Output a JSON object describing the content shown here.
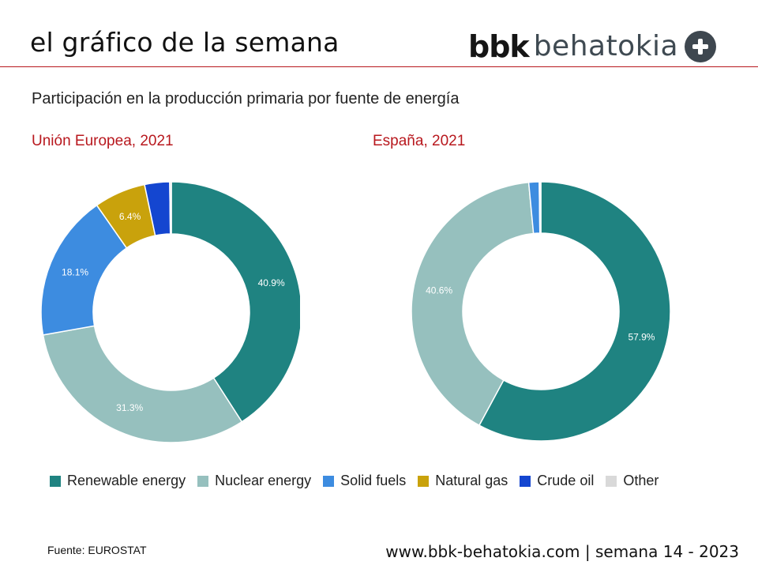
{
  "header": {
    "title": "el gráfico de la semana",
    "logo_text_bold": "bbk",
    "logo_text_light": "behatokia",
    "logo_icon": "plus-circle-icon"
  },
  "subtitle": "Participación en la producción primaria por fuente de energía",
  "colors": {
    "accent_red": "#b8181e",
    "renewable": "#1f8381",
    "nuclear": "#96c0be",
    "solid_fuels": "#3d8ce0",
    "natural_gas": "#c9a20c",
    "crude_oil": "#1446d0",
    "other": "#d9d9d9"
  },
  "chart_data": [
    {
      "type": "pie",
      "donut": true,
      "title": "Unión Europea, 2021",
      "categories": [
        "Renewable energy",
        "Nuclear energy",
        "Solid fuels",
        "Natural gas",
        "Crude oil",
        "Other"
      ],
      "values": [
        40.9,
        31.3,
        18.1,
        6.4,
        3.1,
        0.2
      ],
      "data_labels": [
        "40.9%",
        "31.3%",
        "18.1%",
        "6.4%",
        "",
        ""
      ]
    },
    {
      "type": "pie",
      "donut": true,
      "title": "España, 2021",
      "categories": [
        "Renewable energy",
        "Nuclear energy",
        "Solid fuels",
        "Natural gas",
        "Crude oil",
        "Other"
      ],
      "values": [
        57.9,
        40.6,
        1.3,
        0.0,
        0.1,
        0.1
      ],
      "data_labels": [
        "57.9%",
        "40.6%",
        "",
        "",
        "",
        ""
      ]
    }
  ],
  "legend": {
    "placement": "bottom",
    "items": [
      "Renewable energy",
      "Nuclear energy",
      "Solid fuels",
      "Natural gas",
      "Crude oil",
      "Other"
    ]
  },
  "source": "Fuente: EUROSTAT",
  "footer": "www.bbk-behatokia.com | semana 14 - 2023"
}
